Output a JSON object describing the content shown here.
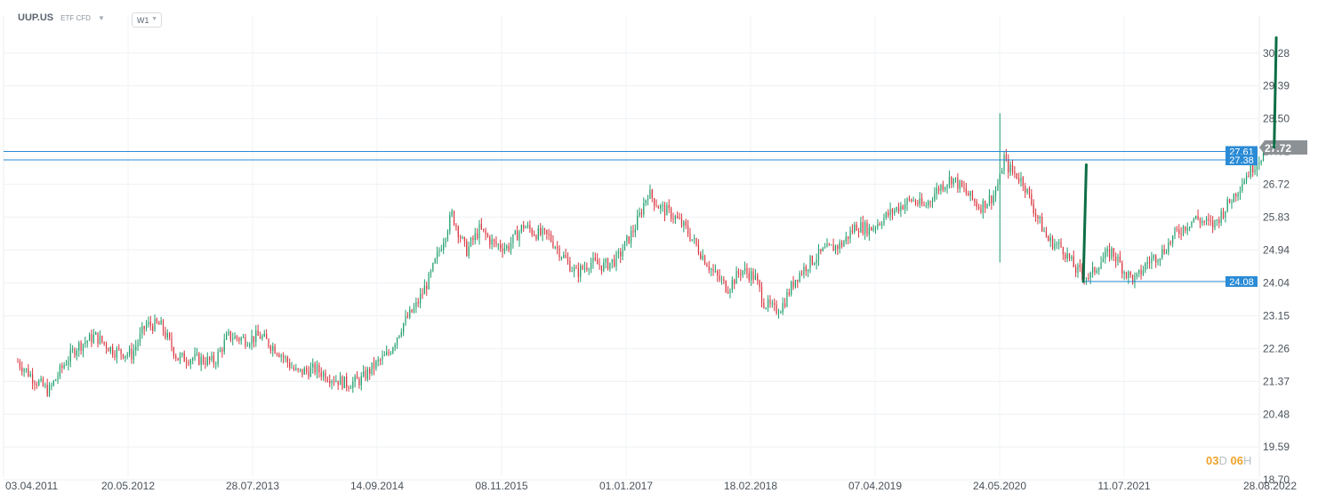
{
  "header": {
    "symbol": "UUP.US",
    "instrument_tags": "ETF CFD",
    "timeframe": "W1"
  },
  "countdown": {
    "days": "03",
    "days_unit": "D",
    "hours": "06",
    "hours_unit": "H"
  },
  "colors": {
    "up": "#1f9e6c",
    "down": "#d9343d",
    "level_line": "#2a8bd6",
    "current_price_bg": "#8c9196",
    "drawn_line": "#0c6e45"
  },
  "chart_data": {
    "type": "candlestick",
    "timeframe": "W1",
    "x_tick_labels": [
      "03.04.2011",
      "20.05.2012",
      "28.07.2013",
      "14.09.2014",
      "08.11.2015",
      "01.01.2017",
      "18.02.2018",
      "07.04.2019",
      "24.05.2020",
      "11.07.2021",
      "28.08.2022"
    ],
    "y_tick_labels": [
      "30.28",
      "29.39",
      "28.50",
      "27.61",
      "26.72",
      "25.83",
      "24.94",
      "24.04",
      "23.15",
      "22.26",
      "21.37",
      "20.48",
      "19.59",
      "18.70"
    ],
    "ylim": [
      18.7,
      30.28
    ],
    "grid": true,
    "price_path": [
      [
        "2011-04-03",
        21.9
      ],
      [
        "2011-06-01",
        21.4
      ],
      [
        "2011-07-15",
        21.1
      ],
      [
        "2011-09-01",
        21.8
      ],
      [
        "2011-10-15",
        22.3
      ],
      [
        "2011-12-15",
        22.6
      ],
      [
        "2012-02-15",
        22.2
      ],
      [
        "2012-04-15",
        22.1
      ],
      [
        "2012-06-01",
        22.9
      ],
      [
        "2012-07-20",
        22.9
      ],
      [
        "2012-09-15",
        22.0
      ],
      [
        "2012-11-01",
        22.0
      ],
      [
        "2013-01-15",
        21.9
      ],
      [
        "2013-03-01",
        22.6
      ],
      [
        "2013-05-01",
        22.5
      ],
      [
        "2013-06-15",
        22.6
      ],
      [
        "2013-08-15",
        22.2
      ],
      [
        "2013-10-15",
        21.6
      ],
      [
        "2013-12-15",
        21.7
      ],
      [
        "2014-02-01",
        21.5
      ],
      [
        "2014-04-01",
        21.3
      ],
      [
        "2014-05-15",
        21.4
      ],
      [
        "2014-07-01",
        21.8
      ],
      [
        "2014-08-15",
        22.1
      ],
      [
        "2014-10-01",
        22.9
      ],
      [
        "2014-11-15",
        23.4
      ],
      [
        "2015-01-01",
        24.2
      ],
      [
        "2015-03-15",
        25.9
      ],
      [
        "2015-05-01",
        24.9
      ],
      [
        "2015-06-15",
        25.5
      ],
      [
        "2015-08-01",
        25.1
      ],
      [
        "2015-09-15",
        25.0
      ],
      [
        "2015-11-08",
        25.6
      ],
      [
        "2015-12-15",
        25.4
      ],
      [
        "2016-02-01",
        25.3
      ],
      [
        "2016-03-15",
        24.8
      ],
      [
        "2016-05-01",
        24.3
      ],
      [
        "2016-06-15",
        24.6
      ],
      [
        "2016-08-01",
        24.5
      ],
      [
        "2016-09-15",
        24.7
      ],
      [
        "2016-11-15",
        25.6
      ],
      [
        "2016-12-25",
        26.5
      ],
      [
        "2017-02-01",
        26.1
      ],
      [
        "2017-03-15",
        25.9
      ],
      [
        "2017-05-01",
        25.5
      ],
      [
        "2017-06-15",
        24.9
      ],
      [
        "2017-08-01",
        24.3
      ],
      [
        "2017-09-15",
        23.9
      ],
      [
        "2017-11-01",
        24.4
      ],
      [
        "2017-12-15",
        24.2
      ],
      [
        "2018-01-15",
        23.5
      ],
      [
        "2018-02-18",
        23.3
      ],
      [
        "2018-03-15",
        23.4
      ],
      [
        "2018-05-01",
        24.2
      ],
      [
        "2018-06-15",
        24.6
      ],
      [
        "2018-08-01",
        24.9
      ],
      [
        "2018-10-01",
        25.1
      ],
      [
        "2018-11-15",
        25.6
      ],
      [
        "2019-01-01",
        25.5
      ],
      [
        "2019-02-15",
        25.8
      ],
      [
        "2019-04-07",
        26.1
      ],
      [
        "2019-05-20",
        26.3
      ],
      [
        "2019-07-01",
        26.1
      ],
      [
        "2019-08-15",
        26.6
      ],
      [
        "2019-10-01",
        26.9
      ],
      [
        "2019-11-15",
        26.5
      ],
      [
        "2020-01-01",
        26.1
      ],
      [
        "2020-02-15",
        26.4
      ],
      [
        "2020-03-10",
        26.9
      ],
      [
        "2020-03-20",
        27.5
      ],
      [
        "2020-04-01",
        27.2
      ],
      [
        "2020-05-24",
        26.8
      ],
      [
        "2020-07-01",
        26.0
      ],
      [
        "2020-08-15",
        25.2
      ],
      [
        "2020-10-01",
        25.0
      ],
      [
        "2020-11-15",
        24.4
      ],
      [
        "2021-01-01",
        24.2
      ],
      [
        "2021-02-01",
        24.6
      ],
      [
        "2021-03-15",
        24.9
      ],
      [
        "2021-05-01",
        24.3
      ],
      [
        "2021-06-01",
        24.1
      ],
      [
        "2021-07-11",
        24.6
      ],
      [
        "2021-09-01",
        24.9
      ],
      [
        "2021-10-15",
        25.4
      ],
      [
        "2021-12-15",
        25.8
      ],
      [
        "2022-02-15",
        25.6
      ],
      [
        "2022-04-15",
        26.3
      ],
      [
        "2022-05-30",
        26.9
      ],
      [
        "2022-07-15",
        27.4
      ],
      [
        "2022-08-20",
        27.72
      ]
    ],
    "wick_extremes": [
      [
        "2020-03-10",
        28.65,
        24.6
      ]
    ],
    "horizontal_levels": [
      {
        "label": "27.61",
        "value": 27.61
      },
      {
        "label": "27.38",
        "value": 27.38
      },
      {
        "label": "24.08",
        "value": 24.08
      }
    ],
    "current_price": "27.72",
    "drawn_lines": [
      {
        "x1": "2020-12-10",
        "y1": 24.08,
        "x2": "2020-12-20",
        "y2": 27.25
      },
      {
        "x1": "2022-09-05",
        "y1": 27.72,
        "x2": "2022-09-12",
        "y2": 30.7
      }
    ]
  }
}
